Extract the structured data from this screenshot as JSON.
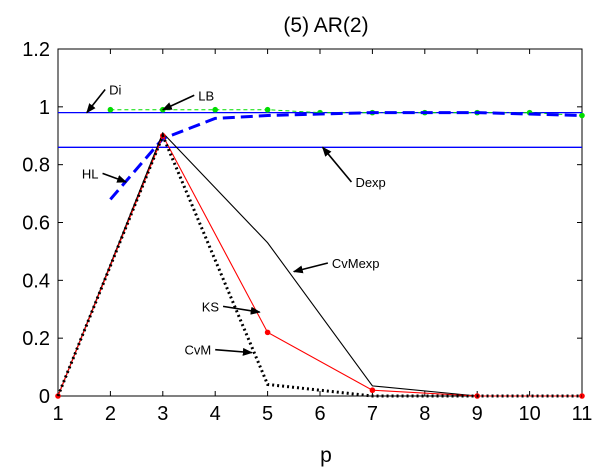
{
  "chart_data": {
    "type": "line",
    "title": "(5) AR(2)",
    "xlabel": "p",
    "ylabel": "",
    "xlim": [
      1,
      11
    ],
    "ylim": [
      0,
      1.2
    ],
    "xticks": [
      1,
      2,
      3,
      4,
      5,
      6,
      7,
      8,
      9,
      10,
      11
    ],
    "yticks": [
      0,
      0.2,
      0.4,
      0.6,
      0.8,
      1,
      1.2
    ],
    "xtick_labels": [
      "1",
      "2",
      "3",
      "4",
      "5",
      "6",
      "7",
      "8",
      "9",
      "10",
      "11"
    ],
    "ytick_labels": [
      "0",
      "0.2",
      "0.4",
      "0.6",
      "0.8",
      "1",
      "1.2"
    ],
    "grid": false,
    "hlines": [
      {
        "name": "Di",
        "y": 0.98,
        "color": "#0000ff"
      },
      {
        "name": "Dexp",
        "y": 0.86,
        "color": "#0000ff"
      }
    ],
    "series": [
      {
        "name": "LB",
        "color": "#00dd00",
        "style": "dashed-markers",
        "x": [
          2,
          3,
          4,
          5,
          6,
          7,
          8,
          9,
          10,
          11
        ],
        "y": [
          0.99,
          0.99,
          0.99,
          0.99,
          0.98,
          0.98,
          0.98,
          0.98,
          0.98,
          0.97
        ]
      },
      {
        "name": "HL",
        "color": "#0000ff",
        "style": "thick-dashed",
        "x": [
          2,
          3,
          4,
          5,
          6,
          7,
          8,
          9,
          10,
          11
        ],
        "y": [
          0.68,
          0.89,
          0.96,
          0.97,
          0.975,
          0.98,
          0.98,
          0.98,
          0.975,
          0.97
        ]
      },
      {
        "name": "CvMexp",
        "color": "#000000",
        "style": "solid",
        "x": [
          1,
          3,
          5,
          7,
          9,
          11
        ],
        "y": [
          0.0,
          0.91,
          0.53,
          0.035,
          0.0,
          0.0
        ]
      },
      {
        "name": "KS",
        "color": "#ff0000",
        "style": "solid-markers",
        "x": [
          1,
          3,
          5,
          7,
          9,
          11
        ],
        "y": [
          0.0,
          0.9,
          0.22,
          0.02,
          0.0,
          0.0
        ]
      },
      {
        "name": "CvM",
        "color": "#000000",
        "style": "dotted",
        "x": [
          1,
          3,
          5,
          7,
          9,
          11
        ],
        "y": [
          0.0,
          0.9,
          0.04,
          0.0,
          0.0,
          0.0
        ]
      }
    ],
    "annotations": [
      {
        "text": "Di",
        "from": [
          1.9,
          1.06
        ],
        "to": [
          1.55,
          0.98
        ]
      },
      {
        "text": "LB",
        "from": [
          3.6,
          1.04
        ],
        "to": [
          3.0,
          0.99
        ]
      },
      {
        "text": "HL",
        "from": [
          1.85,
          0.77
        ],
        "to": [
          2.3,
          0.74
        ]
      },
      {
        "text": "Dexp",
        "from": [
          6.6,
          0.74
        ],
        "to": [
          6.05,
          0.86
        ]
      },
      {
        "text": "CvMexp",
        "from": [
          6.15,
          0.46
        ],
        "to": [
          5.5,
          0.43
        ]
      },
      {
        "text": "KS",
        "from": [
          4.15,
          0.31
        ],
        "to": [
          4.85,
          0.29
        ]
      },
      {
        "text": "CvM",
        "from": [
          4.0,
          0.16
        ],
        "to": [
          4.7,
          0.15
        ]
      }
    ]
  }
}
